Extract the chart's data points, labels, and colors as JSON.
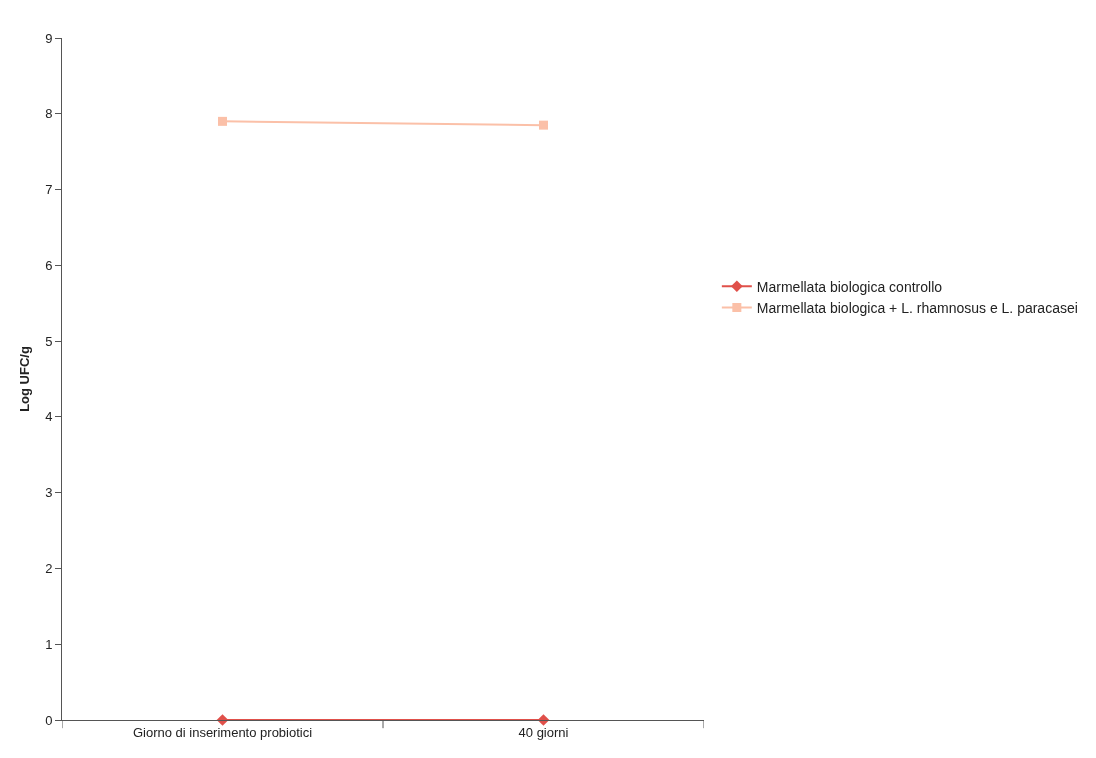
{
  "chart_data": {
    "type": "line",
    "ylabel": "Log UFC/g",
    "categories": [
      "Giorno di inserimento probiotici",
      "40 giorni"
    ],
    "series": [
      {
        "name": "Marmellata biologica controllo",
        "color": "#e0504a",
        "marker": "diamond",
        "values": [
          0,
          0
        ]
      },
      {
        "name": "Marmellata biologica + L. rhamnosus e L. paracasei",
        "color": "#fbc0a8",
        "marker": "square",
        "values": [
          7.9,
          7.85
        ]
      }
    ],
    "ylim": [
      0,
      9
    ],
    "yticks": [
      0,
      1,
      2,
      3,
      4,
      5,
      6,
      7,
      8,
      9
    ],
    "grid": false,
    "legend": "right"
  }
}
